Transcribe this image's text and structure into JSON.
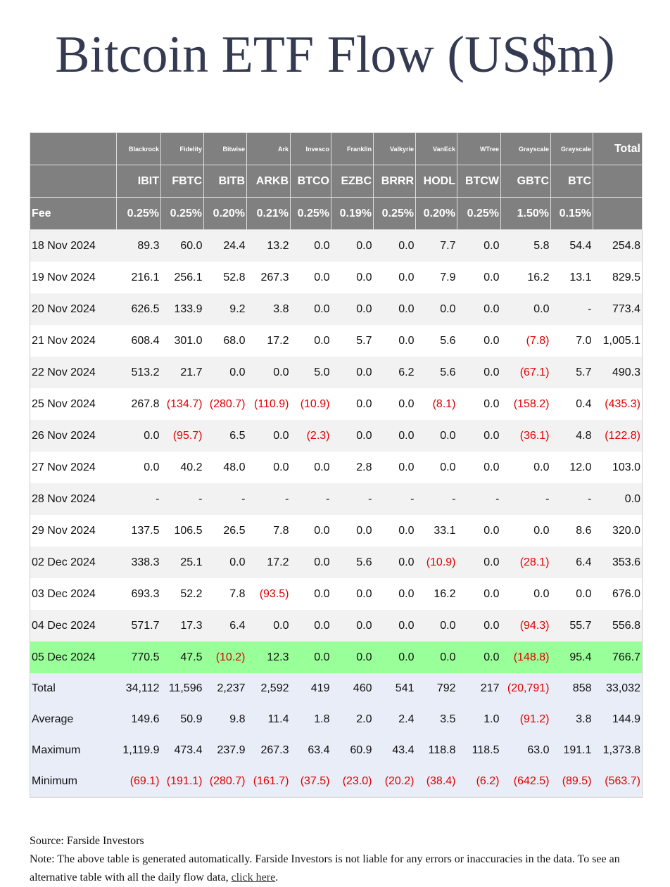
{
  "header": {
    "title": "Bitcoin ETF Flow (US$m)"
  },
  "table": {
    "fee_label": "Fee",
    "total_label": "Total",
    "columns": [
      {
        "issuer": "Blackrock",
        "ticker": "IBIT",
        "fee": "0.25%"
      },
      {
        "issuer": "Fidelity",
        "ticker": "FBTC",
        "fee": "0.25%"
      },
      {
        "issuer": "Bitwise",
        "ticker": "BITB",
        "fee": "0.20%"
      },
      {
        "issuer": "Ark",
        "ticker": "ARKB",
        "fee": "0.21%"
      },
      {
        "issuer": "Invesco",
        "ticker": "BTCO",
        "fee": "0.25%"
      },
      {
        "issuer": "Franklin",
        "ticker": "EZBC",
        "fee": "0.19%"
      },
      {
        "issuer": "Valkyrie",
        "ticker": "BRRR",
        "fee": "0.25%"
      },
      {
        "issuer": "VanEck",
        "ticker": "HODL",
        "fee": "0.20%"
      },
      {
        "issuer": "WTree",
        "ticker": "BTCW",
        "fee": "0.25%"
      },
      {
        "issuer": "Grayscale",
        "ticker": "GBTC",
        "fee": "1.50%"
      },
      {
        "issuer": "Grayscale",
        "ticker": "BTC",
        "fee": "0.15%"
      }
    ],
    "rows": [
      {
        "date": "18 Nov 2024",
        "values": [
          "89.3",
          "60.0",
          "24.4",
          "13.2",
          "0.0",
          "0.0",
          "0.0",
          "7.7",
          "0.0",
          "5.8",
          "54.4",
          "254.8"
        ]
      },
      {
        "date": "19 Nov 2024",
        "values": [
          "216.1",
          "256.1",
          "52.8",
          "267.3",
          "0.0",
          "0.0",
          "0.0",
          "7.9",
          "0.0",
          "16.2",
          "13.1",
          "829.5"
        ]
      },
      {
        "date": "20 Nov 2024",
        "values": [
          "626.5",
          "133.9",
          "9.2",
          "3.8",
          "0.0",
          "0.0",
          "0.0",
          "0.0",
          "0.0",
          "0.0",
          "-",
          "773.4"
        ]
      },
      {
        "date": "21 Nov 2024",
        "values": [
          "608.4",
          "301.0",
          "68.0",
          "17.2",
          "0.0",
          "5.7",
          "0.0",
          "5.6",
          "0.0",
          "(7.8)",
          "7.0",
          "1,005.1"
        ]
      },
      {
        "date": "22 Nov 2024",
        "values": [
          "513.2",
          "21.7",
          "0.0",
          "0.0",
          "5.0",
          "0.0",
          "6.2",
          "5.6",
          "0.0",
          "(67.1)",
          "5.7",
          "490.3"
        ]
      },
      {
        "date": "25 Nov 2024",
        "values": [
          "267.8",
          "(134.7)",
          "(280.7)",
          "(110.9)",
          "(10.9)",
          "0.0",
          "0.0",
          "(8.1)",
          "0.0",
          "(158.2)",
          "0.4",
          "(435.3)"
        ]
      },
      {
        "date": "26 Nov 2024",
        "values": [
          "0.0",
          "(95.7)",
          "6.5",
          "0.0",
          "(2.3)",
          "0.0",
          "0.0",
          "0.0",
          "0.0",
          "(36.1)",
          "4.8",
          "(122.8)"
        ]
      },
      {
        "date": "27 Nov 2024",
        "values": [
          "0.0",
          "40.2",
          "48.0",
          "0.0",
          "0.0",
          "2.8",
          "0.0",
          "0.0",
          "0.0",
          "0.0",
          "12.0",
          "103.0"
        ]
      },
      {
        "date": "28 Nov 2024",
        "values": [
          "-",
          "-",
          "-",
          "-",
          "-",
          "-",
          "-",
          "-",
          "-",
          "-",
          "-",
          "0.0"
        ]
      },
      {
        "date": "29 Nov 2024",
        "values": [
          "137.5",
          "106.5",
          "26.5",
          "7.8",
          "0.0",
          "0.0",
          "0.0",
          "33.1",
          "0.0",
          "0.0",
          "8.6",
          "320.0"
        ]
      },
      {
        "date": "02 Dec 2024",
        "values": [
          "338.3",
          "25.1",
          "0.0",
          "17.2",
          "0.0",
          "5.6",
          "0.0",
          "(10.9)",
          "0.0",
          "(28.1)",
          "6.4",
          "353.6"
        ]
      },
      {
        "date": "03 Dec 2024",
        "values": [
          "693.3",
          "52.2",
          "7.8",
          "(93.5)",
          "0.0",
          "0.0",
          "0.0",
          "16.2",
          "0.0",
          "0.0",
          "0.0",
          "676.0"
        ]
      },
      {
        "date": "04 Dec 2024",
        "values": [
          "571.7",
          "17.3",
          "6.4",
          "0.0",
          "0.0",
          "0.0",
          "0.0",
          "0.0",
          "0.0",
          "(94.3)",
          "55.7",
          "556.8"
        ]
      },
      {
        "date": "05 Dec 2024",
        "highlight": true,
        "values": [
          "770.5",
          "47.5",
          "(10.2)",
          "12.3",
          "0.0",
          "0.0",
          "0.0",
          "0.0",
          "0.0",
          "(148.8)",
          "95.4",
          "766.7"
        ]
      }
    ],
    "summary": [
      {
        "label": "Total",
        "values": [
          "34,112",
          "11,596",
          "2,237",
          "2,592",
          "419",
          "460",
          "541",
          "792",
          "217",
          "(20,791)",
          "858",
          "33,032"
        ]
      },
      {
        "label": "Average",
        "values": [
          "149.6",
          "50.9",
          "9.8",
          "11.4",
          "1.8",
          "2.0",
          "2.4",
          "3.5",
          "1.0",
          "(91.2)",
          "3.8",
          "144.9"
        ]
      },
      {
        "label": "Maximum",
        "values": [
          "1,119.9",
          "473.4",
          "237.9",
          "267.3",
          "63.4",
          "60.9",
          "43.4",
          "118.8",
          "118.5",
          "63.0",
          "191.1",
          "1,373.8"
        ]
      },
      {
        "label": "Minimum",
        "values": [
          "(69.1)",
          "(191.1)",
          "(280.7)",
          "(161.7)",
          "(37.5)",
          "(23.0)",
          "(20.2)",
          "(38.4)",
          "(6.2)",
          "(642.5)",
          "(89.5)",
          "(563.7)"
        ]
      }
    ]
  },
  "footer": {
    "source": "Source: Farside Investors",
    "note": "Note: The above table is generated automatically. Farside Investors is not liable for any errors or inaccuracies in the data. To see an alternative table with all the daily flow data, ",
    "link": "click here",
    "note_end": "."
  }
}
